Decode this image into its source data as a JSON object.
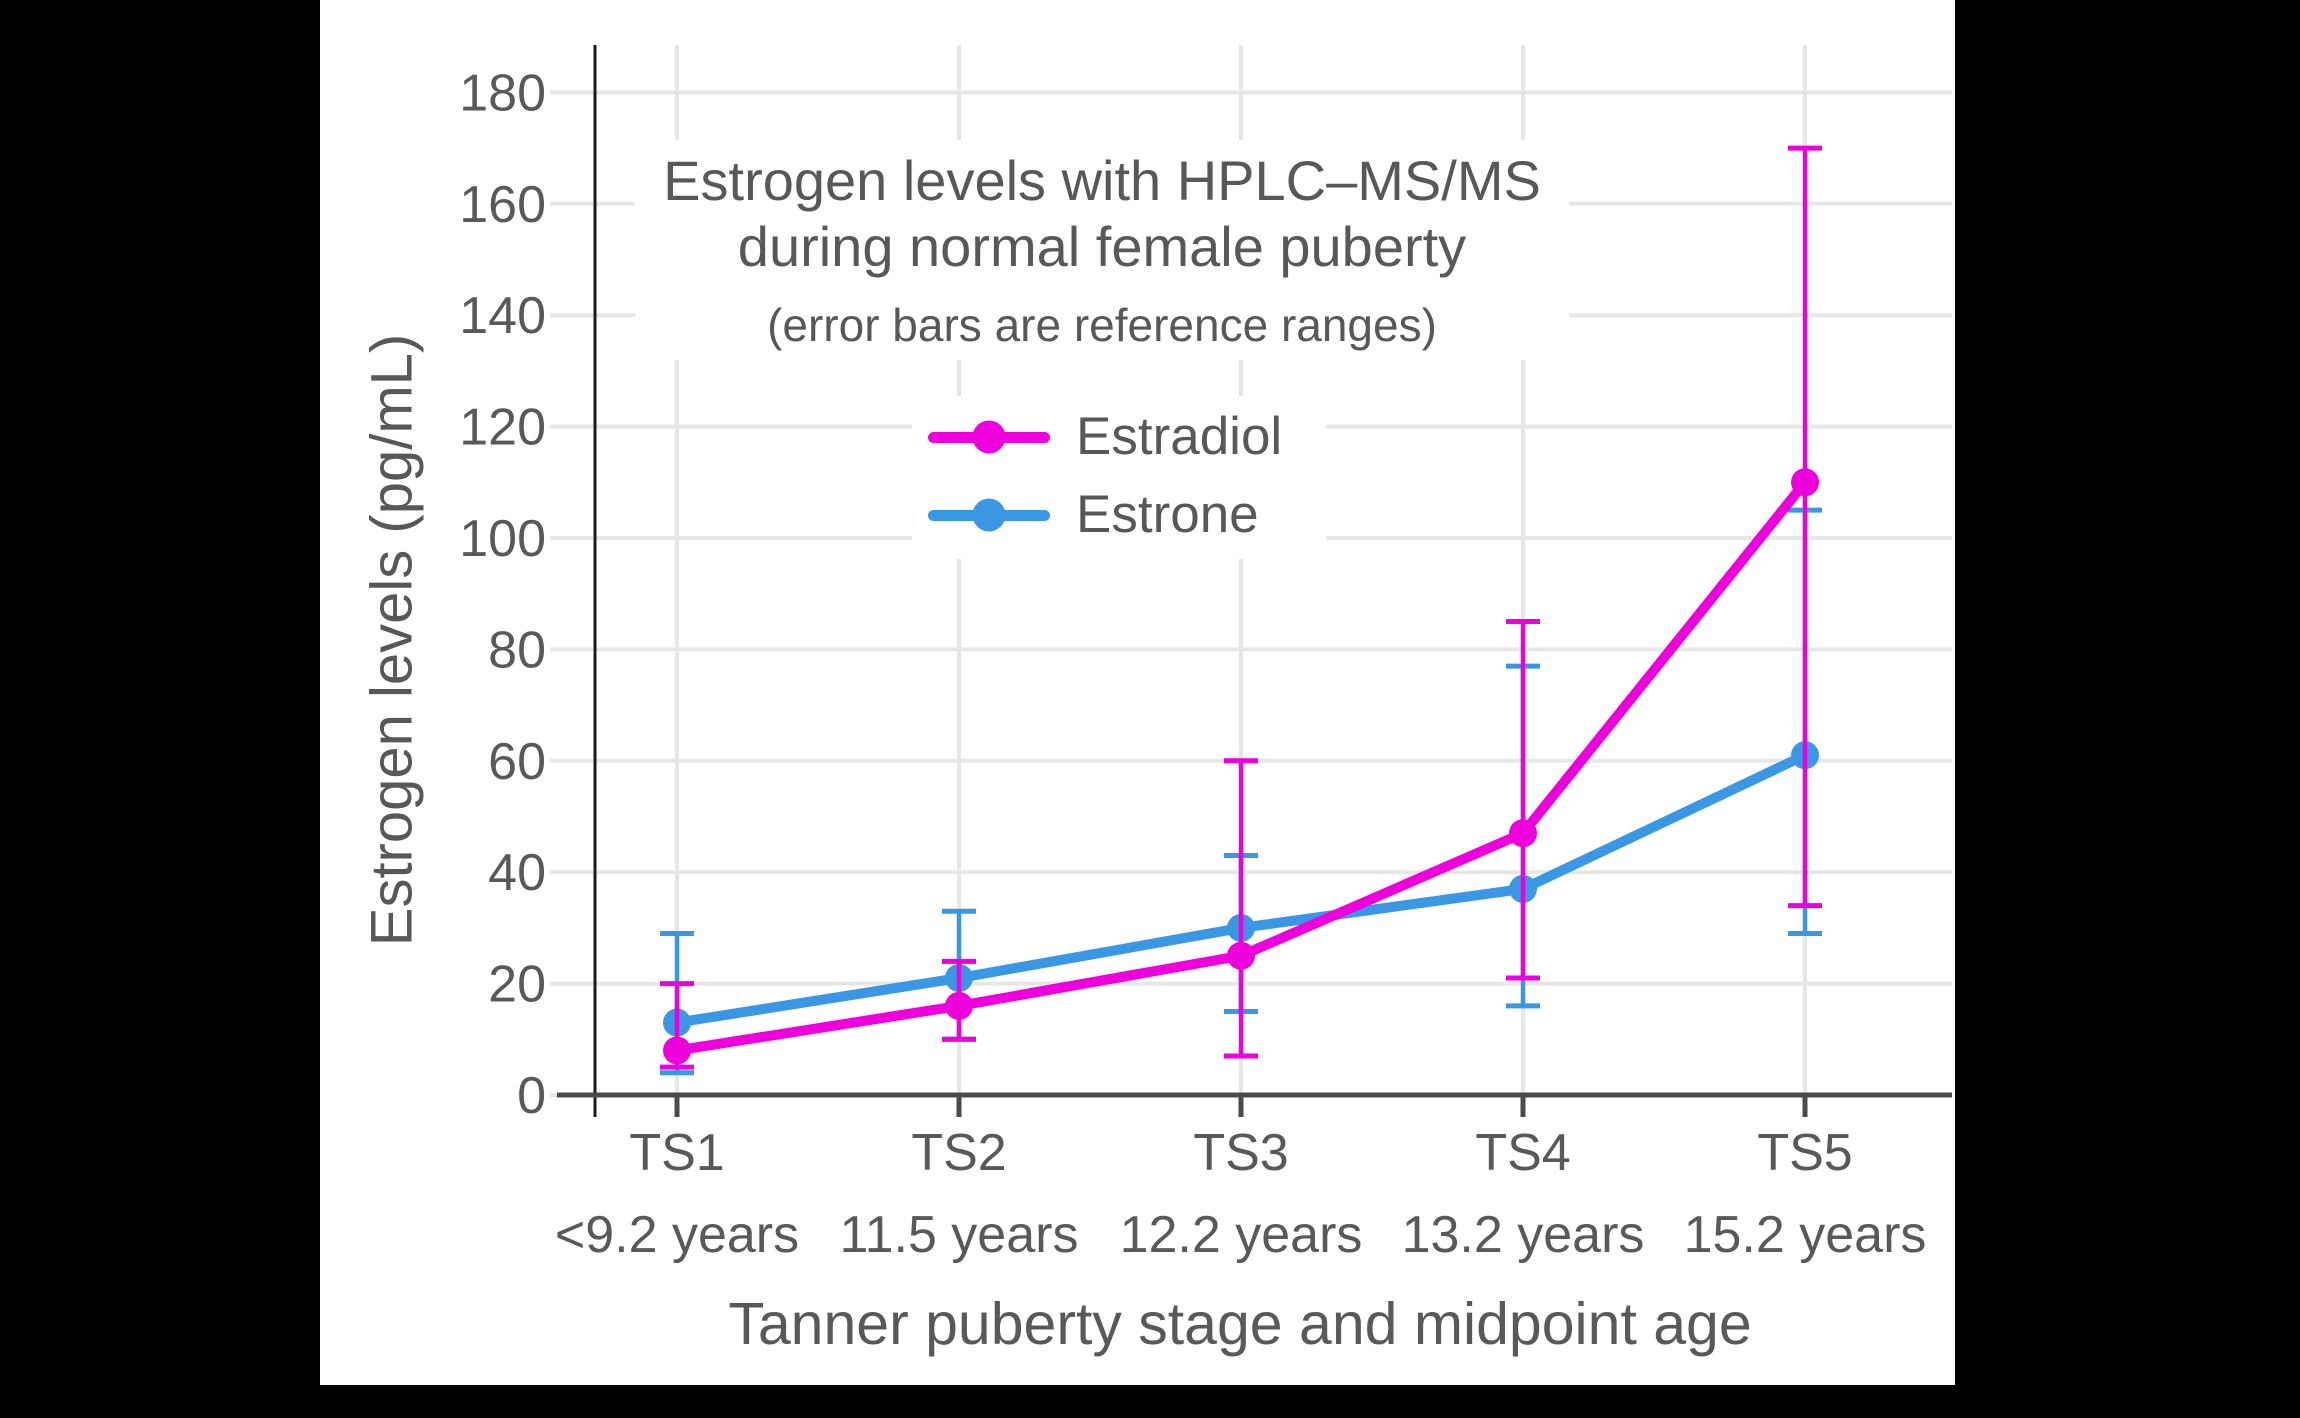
{
  "chart_data": {
    "type": "line",
    "title_lines": [
      "Estrogen levels with HPLC–MS/MS",
      "during normal female puberty"
    ],
    "subtitle": "(error bars are reference ranges)",
    "ylabel": "Estrogen levels (pg/mL)",
    "xlabel": "Tanner puberty stage and midpoint age",
    "categories": [
      {
        "stage": "TS1",
        "age": "<9.2 years"
      },
      {
        "stage": "TS2",
        "age": "11.5 years"
      },
      {
        "stage": "TS3",
        "age": "12.2 years"
      },
      {
        "stage": "TS4",
        "age": "13.2 years"
      },
      {
        "stage": "TS5",
        "age": "15.2 years"
      }
    ],
    "y_axis": {
      "min": 0,
      "max": 180,
      "tick_step": 20,
      "tick_labels": [
        "0",
        "20",
        "40",
        "60",
        "80",
        "100",
        "120",
        "140",
        "160",
        "180"
      ]
    },
    "series": [
      {
        "name": "Estradiol",
        "color": "#ee00dc",
        "values": [
          8,
          16,
          25,
          47,
          110
        ],
        "ranges": [
          [
            5,
            20
          ],
          [
            10,
            24
          ],
          [
            7,
            60
          ],
          [
            21,
            85
          ],
          [
            34,
            170
          ]
        ]
      },
      {
        "name": "Estrone",
        "color": "#3a97e3",
        "values": [
          13,
          21,
          30,
          37,
          61
        ],
        "ranges": [
          [
            4,
            29
          ],
          [
            10,
            33
          ],
          [
            15,
            43
          ],
          [
            16,
            77
          ],
          [
            29,
            105
          ]
        ]
      }
    ],
    "grid": true,
    "legend_position": "upper-center",
    "palette": {
      "text": "#595959",
      "grid": "#e7e7e7",
      "x_axis": "#4b4b4b",
      "y_axis": "#1a1a1a",
      "panel_bg": "#ffffff",
      "frame_bg": "#000000"
    }
  }
}
